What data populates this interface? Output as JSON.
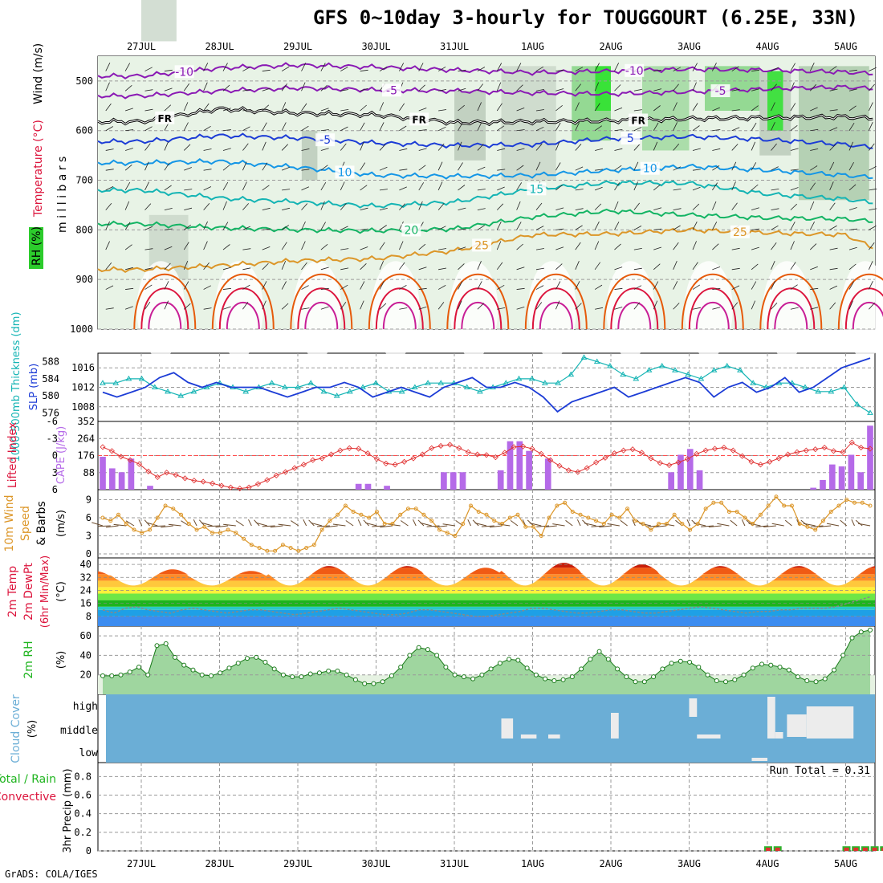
{
  "title": "GFS 0~10day 3-hourly for TOUGGOURT (6.25E, 33N)",
  "credit": "GrADS: COLA/IGES",
  "dates": [
    "27JUL",
    "28JUL",
    "29JUL",
    "30JUL",
    "31JUL",
    "1AUG",
    "2AUG",
    "3AUG",
    "4AUG",
    "5AUG"
  ],
  "colors": {
    "purple": "#8a1ab4",
    "blue": "#1c3cd6",
    "lightblue": "#1496e6",
    "teal": "#14b4b4",
    "green": "#14b464",
    "orange": "#dc9628",
    "darkorange": "#e65a0a",
    "red": "#dc143c",
    "cloudbg": "#6baed6",
    "cape": "#b56ae8"
  },
  "chart_data": [
    {
      "type": "contour",
      "name": "upper-air cross-section",
      "ylabel": "m i l l i b a r s",
      "side_labels": [
        "RH (%)",
        "Temperature (°C)",
        "Wind (m/s)"
      ],
      "y_ticks": [
        500,
        600,
        700,
        800,
        900,
        1000
      ],
      "ylim": [
        1000,
        450
      ],
      "isotherm_labels": [
        {
          "text": "-10",
          "series": "minus10",
          "day": 0.55
        },
        {
          "text": "-10",
          "series": "minus10",
          "day": 6.3
        },
        {
          "text": "-5",
          "series": "minus5",
          "day": 3.2
        },
        {
          "text": "-5",
          "series": "minus5",
          "day": 7.4
        },
        {
          "text": "FR",
          "series": "freezing",
          "day": 0.3
        },
        {
          "text": "FR",
          "series": "freezing",
          "day": 3.55
        },
        {
          "text": "FR",
          "series": "freezing",
          "day": 6.35
        },
        {
          "text": "-5",
          "series": "plus5",
          "day": 2.35
        },
        {
          "text": "5",
          "series": "plus5",
          "day": 6.25
        },
        {
          "text": "10",
          "series": "plus10",
          "day": 2.6
        },
        {
          "text": "10",
          "series": "plus10",
          "day": 6.5
        },
        {
          "text": "15",
          "series": "plus15",
          "day": 5.05
        },
        {
          "text": "20",
          "series": "plus20",
          "day": 3.45
        },
        {
          "text": "25",
          "series": "plus25",
          "day": 7.65
        },
        {
          "text": "25",
          "series": "plus25",
          "day": 4.35
        }
      ],
      "isotherms": [
        {
          "name": "minus10",
          "label": "-10 °C",
          "color": "purple",
          "p": [
            [
              0,
              490
            ],
            [
              1,
              474
            ],
            [
              2,
              468
            ],
            [
              3,
              472
            ],
            [
              4,
              478
            ],
            [
              5,
              483
            ],
            [
              6,
              480
            ],
            [
              7,
              476
            ],
            [
              8,
              478
            ],
            [
              9,
              482
            ],
            [
              9.8,
              490
            ]
          ]
        },
        {
          "name": "minus5",
          "label": "-5 °C",
          "color": "purple",
          "p": [
            [
              0,
              530
            ],
            [
              1,
              520
            ],
            [
              2,
              514
            ],
            [
              3,
              518
            ],
            [
              4,
              520
            ],
            [
              5,
              524
            ],
            [
              6,
              526
            ],
            [
              7,
              522
            ],
            [
              8,
              516
            ],
            [
              9,
              512
            ],
            [
              9.8,
              520
            ]
          ]
        },
        {
          "name": "freezing",
          "label": "FR",
          "color": "black",
          "p": [
            [
              0,
              582
            ],
            [
              1,
              556
            ],
            [
              2,
              565
            ],
            [
              3,
              568
            ],
            [
              4,
              584
            ],
            [
              5,
              582
            ],
            [
              6,
              580
            ],
            [
              7,
              576
            ],
            [
              8,
              574
            ],
            [
              9,
              572
            ],
            [
              9.8,
              580
            ]
          ]
        },
        {
          "name": "plus5",
          "label": "5 °C",
          "color": "blue",
          "p": [
            [
              0,
              622
            ],
            [
              1,
              610
            ],
            [
              2,
              615
            ],
            [
              3,
              625
            ],
            [
              4,
              630
            ],
            [
              5,
              628
            ],
            [
              6,
              616
            ],
            [
              7,
              612
            ],
            [
              8,
              618
            ],
            [
              9,
              628
            ],
            [
              9.8,
              642
            ]
          ]
        },
        {
          "name": "plus10",
          "label": "10 °C",
          "color": "lightblue",
          "p": [
            [
              0,
              665
            ],
            [
              1,
              662
            ],
            [
              2,
              674
            ],
            [
              3,
              690
            ],
            [
              4,
              692
            ],
            [
              5,
              690
            ],
            [
              6,
              680
            ],
            [
              7,
              672
            ],
            [
              8,
              680
            ],
            [
              9,
              690
            ],
            [
              9.8,
              700
            ]
          ]
        },
        {
          "name": "plus15",
          "label": "15 °C",
          "color": "teal",
          "p": [
            [
              0,
              720
            ],
            [
              1,
              736
            ],
            [
              2,
              744
            ],
            [
              3,
              752
            ],
            [
              4,
              744
            ],
            [
              5,
              718
            ],
            [
              6,
              705
            ],
            [
              7,
              706
            ],
            [
              8,
              728
            ],
            [
              9,
              738
            ],
            [
              9.8,
              755
            ]
          ]
        },
        {
          "name": "plus20",
          "label": "20 °C",
          "color": "green",
          "p": [
            [
              0,
              788
            ],
            [
              1,
              796
            ],
            [
              2,
              800
            ],
            [
              3,
              802
            ],
            [
              4,
              798
            ],
            [
              5,
              774
            ],
            [
              6,
              762
            ],
            [
              7,
              770
            ],
            [
              8,
              776
            ],
            [
              9,
              778
            ],
            [
              9.8,
              790
            ]
          ]
        },
        {
          "name": "plus25",
          "label": "25 °C",
          "color": "orange",
          "p": [
            [
              0,
              880
            ],
            [
              1,
              872
            ],
            [
              2,
              862
            ],
            [
              3,
              858
            ],
            [
              4,
              842
            ],
            [
              5,
              810
            ],
            [
              6,
              808
            ],
            [
              7,
              800
            ],
            [
              8,
              806
            ],
            [
              9,
              810
            ],
            [
              9.8,
              870
            ]
          ]
        }
      ]
    },
    {
      "type": "line",
      "name": "thickness-slp",
      "ylabel": "1000-500mb Thickness (dm)",
      "ylabel2": "SLP (mb)",
      "thickness_ticks": [
        576,
        580,
        584,
        588
      ],
      "thickness_lim": [
        574,
        590
      ],
      "slp_ticks": [
        1008,
        1012,
        1016
      ],
      "slp_lim": [
        1005,
        1019
      ],
      "extra_label": "352",
      "thickness": [
        583,
        583,
        584,
        584,
        582,
        581,
        580,
        581,
        582,
        583,
        582,
        581,
        582,
        583,
        582,
        582,
        583,
        581,
        580,
        581,
        582,
        583,
        581,
        581,
        582,
        583,
        583,
        583,
        582,
        581,
        582,
        583,
        584,
        584,
        583,
        583,
        585,
        589,
        588,
        587,
        585,
        584,
        586,
        587,
        586,
        585,
        584,
        586,
        587,
        586,
        583,
        582,
        583,
        583,
        582,
        581,
        581,
        582,
        578,
        576
      ],
      "slp": [
        1011,
        1010,
        1011,
        1012,
        1014,
        1015,
        1013,
        1012,
        1013,
        1012,
        1012,
        1012,
        1011,
        1010,
        1011,
        1012,
        1012,
        1013,
        1012,
        1010,
        1011,
        1012,
        1011,
        1010,
        1012,
        1013,
        1014,
        1012,
        1012,
        1013,
        1012,
        1010,
        1007,
        1009,
        1010,
        1011,
        1012,
        1010,
        1011,
        1012,
        1013,
        1014,
        1013,
        1010,
        1012,
        1013,
        1011,
        1012,
        1014,
        1011,
        1012,
        1014,
        1016,
        1017,
        1018
      ]
    },
    {
      "type": "bar+line",
      "name": "cape-lifted-index",
      "ylabel": "Lifted Index",
      "ylabel2": "CAPE (J/kg)",
      "li_ticks": [
        "-6",
        "-3",
        "0",
        "3",
        "6"
      ],
      "li_lim": [
        -6,
        6
      ],
      "cape_ticks": [
        88,
        176,
        264,
        352
      ],
      "cape_lim": [
        0,
        352
      ],
      "cape": [
        170,
        110,
        90,
        160,
        0,
        20,
        0,
        0,
        0,
        0,
        0,
        0,
        0,
        0,
        0,
        0,
        0,
        0,
        0,
        0,
        0,
        0,
        0,
        0,
        0,
        0,
        0,
        30,
        30,
        0,
        20,
        0,
        0,
        0,
        0,
        0,
        90,
        90,
        90,
        0,
        0,
        0,
        100,
        250,
        250,
        200,
        0,
        160,
        0,
        0,
        0,
        0,
        0,
        0,
        0,
        0,
        0,
        0,
        0,
        0,
        90,
        180,
        210,
        100,
        0,
        0,
        0,
        0,
        0,
        0,
        0,
        0,
        0,
        0,
        0,
        10,
        50,
        130,
        120,
        180,
        90,
        330
      ],
      "li": [
        -1.5,
        -0.8,
        0.2,
        0.8,
        1.5,
        2.8,
        3.8,
        3.0,
        3.4,
        4.0,
        4.4,
        4.6,
        4.9,
        5.3,
        5.6,
        5.8,
        5.6,
        5.0,
        4.3,
        3.5,
        2.9,
        2.2,
        1.6,
        0.8,
        0.5,
        -0.2,
        -0.9,
        -1.3,
        -1.2,
        -0.4,
        0.6,
        1.4,
        1.6,
        1.1,
        0.5,
        -0.2,
        -1.3,
        -1.7,
        -1.9,
        -1.3,
        -0.6,
        -0.2,
        -0.1,
        0.3,
        -0.5,
        -1.5,
        -1.6,
        -1.2,
        -0.3,
        0.8,
        1.8,
        2.6,
        2.9,
        2.2,
        1.2,
        0.4,
        -0.4,
        -0.9,
        -1.1,
        -0.5,
        0.5,
        1.3,
        1.7,
        1.2,
        0.6,
        -0.3,
        -0.9,
        -1.2,
        -1.4,
        -0.9,
        0.1,
        1.1,
        1.6,
        1.1,
        0.5,
        -0.2,
        -0.6,
        -0.9,
        -1.1,
        -1.4,
        -0.8,
        -0.6,
        -2.3,
        -1.4,
        -1.2
      ]
    },
    {
      "type": "line",
      "name": "10m-wind",
      "ylabel": "10m Wind Speed & Barbs (m/s)",
      "ticks": [
        0,
        3,
        6,
        9
      ],
      "ylim": [
        0,
        10
      ],
      "speed": [
        6,
        5.5,
        6.5,
        5,
        4,
        3.5,
        4,
        6,
        8,
        7.5,
        6.5,
        5,
        4,
        4.5,
        3.5,
        3.5,
        4,
        3.5,
        2.5,
        1.5,
        1,
        0.5,
        0.5,
        1.5,
        1,
        0.5,
        1,
        1.5,
        4,
        5.5,
        6.5,
        8,
        7,
        6.5,
        6,
        7,
        5,
        5,
        6.5,
        7.5,
        7.5,
        6.5,
        5.5,
        4,
        3.5,
        3,
        5,
        8,
        7,
        6.5,
        5.5,
        5,
        6,
        6.5,
        4.5,
        4.5,
        3,
        6,
        8,
        8.5,
        7,
        6.5,
        6,
        5.5,
        5,
        6.5,
        6,
        7.5,
        5.5,
        5,
        4,
        5,
        5,
        6.5,
        5,
        4,
        5,
        7.5,
        8.5,
        8.5,
        7,
        7,
        6,
        5,
        6.5,
        8,
        9.5,
        8,
        8,
        5,
        4.5,
        4,
        5.5,
        7,
        8,
        9,
        8.5,
        8.5,
        8
      ]
    },
    {
      "type": "area",
      "name": "2m-temp",
      "ylabel": "2m Temp 2m DewPt (6hr Min/Max) (°C)",
      "ticks": [
        8,
        16,
        24,
        32,
        40
      ],
      "ylim": [
        2,
        44
      ],
      "temp_peaks": [
        36,
        37,
        36,
        39,
        39,
        38,
        41,
        40,
        39,
        39,
        39
      ],
      "dewpoint": [
        12,
        10,
        13,
        14,
        12,
        11,
        10,
        12,
        13,
        12,
        11,
        10,
        11,
        12,
        12,
        11,
        10,
        9,
        10,
        11,
        12,
        13,
        12,
        11,
        10,
        9,
        9,
        10,
        12,
        12,
        11,
        10,
        9,
        8,
        8,
        9,
        10,
        11,
        13,
        13,
        12,
        11,
        10,
        10,
        11,
        12,
        12,
        11,
        10,
        10,
        11,
        12,
        13,
        14,
        13,
        12,
        11,
        10,
        11,
        11,
        12,
        12,
        13,
        13,
        13,
        14,
        16,
        18,
        20
      ]
    },
    {
      "type": "area",
      "name": "2m-rh",
      "ylabel": "2m RH (%)",
      "ticks": [
        20,
        40,
        60
      ],
      "ylim": [
        0,
        70
      ],
      "rh": [
        19,
        19,
        20,
        23,
        28,
        20,
        50,
        52,
        38,
        30,
        25,
        20,
        19,
        22,
        27,
        32,
        37,
        38,
        33,
        26,
        20,
        18,
        18,
        21,
        22,
        24,
        24,
        20,
        15,
        11,
        11,
        13,
        19,
        28,
        40,
        48,
        46,
        40,
        28,
        20,
        18,
        16,
        20,
        26,
        32,
        36,
        35,
        27,
        20,
        16,
        14,
        15,
        18,
        26,
        36,
        44,
        36,
        26,
        18,
        13,
        13,
        18,
        26,
        32,
        34,
        33,
        28,
        20,
        14,
        13,
        15,
        20,
        27,
        31,
        30,
        28,
        25,
        18,
        14,
        13,
        16,
        25,
        40,
        58,
        64,
        66
      ]
    },
    {
      "type": "bar",
      "name": "cloud-cover",
      "ylabel": "Cloud Cover (%)",
      "levels": [
        "high",
        "middle",
        "low"
      ],
      "run_total": "Run Total = 0.31"
    },
    {
      "type": "bar",
      "name": "precip",
      "ylabel": "3hr Precip (mm)",
      "legend": [
        "Total / Rain",
        "Convective"
      ],
      "ticks": [
        0,
        0.2,
        0.4,
        0.6,
        0.8
      ],
      "ylim": [
        0,
        0.95
      ],
      "total": [
        0.05,
        0.05,
        0.05,
        0.05,
        0.05,
        0.05,
        0.05
      ],
      "rain_days": [
        8.0,
        8.12,
        9.0,
        9.12,
        9.24,
        9.36,
        9.48
      ]
    }
  ]
}
